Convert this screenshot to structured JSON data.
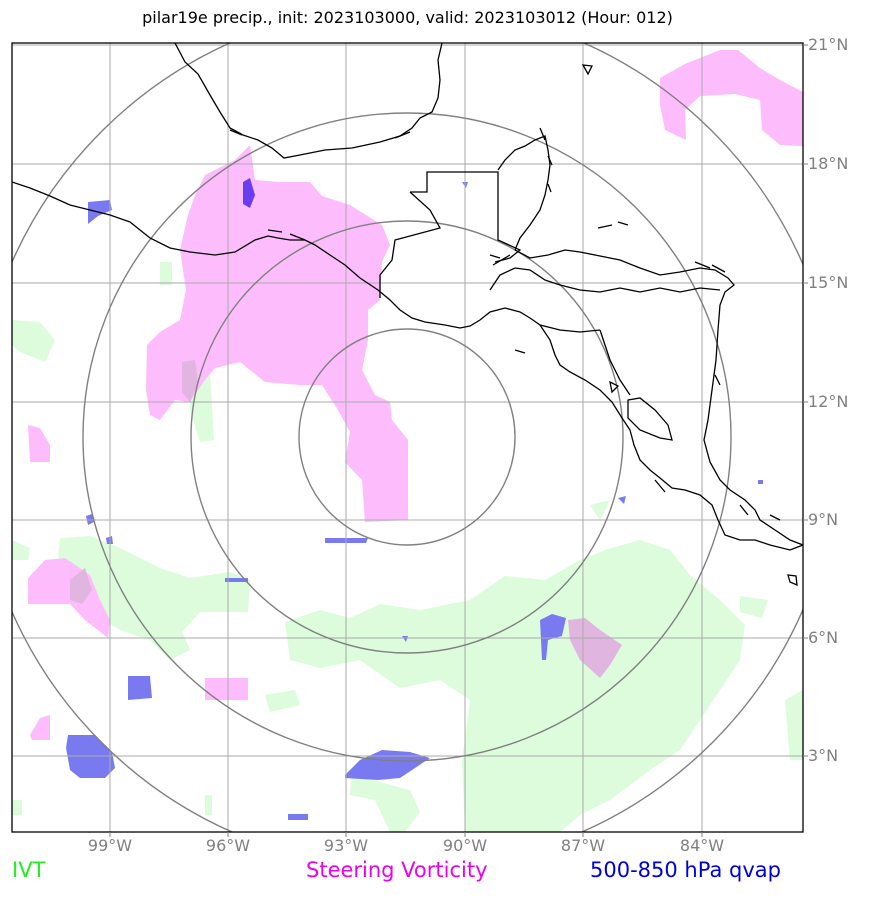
{
  "title": "pilar19e precip., init: 2023103000, valid: 2023103012 (Hour: 012)",
  "lat_labels": [
    "21°N",
    "18°N",
    "15°N",
    "12°N",
    "9°N",
    "6°N",
    "3°N"
  ],
  "lon_labels": [
    "99°W",
    "96°W",
    "93°W",
    "90°W",
    "87°W",
    "84°W"
  ],
  "legend": {
    "ivt": "IVT",
    "vorticity": "Steering Vorticity",
    "qvap": "500-850 hPa qvap"
  },
  "colors": {
    "ivt": "#22ee22",
    "vorticity": "#ee00ee",
    "qvap": "#0000dd",
    "ivt_fill": "#dcfcdc",
    "vorticity_fill": "#fdbdfd",
    "qvap_fill": "#7a7af0",
    "grid": "#aaaaaa",
    "rings": "#808080",
    "coast": "#000000"
  }
}
